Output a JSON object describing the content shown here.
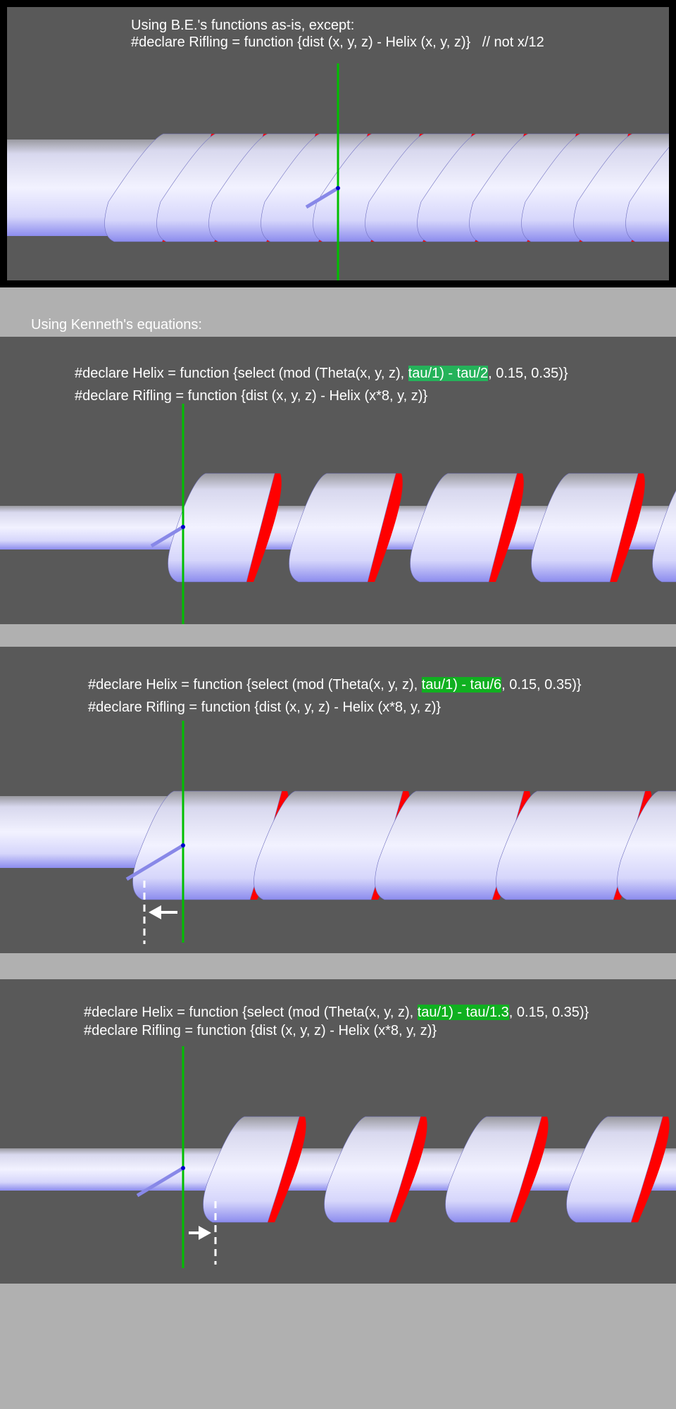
{
  "panel1": {
    "line1": "Using B.E.'s functions as-is, except:",
    "line2": "#declare Rifling = function {dist (x, y, z) - Helix (x, y, z)}",
    "comment": "// not x/12"
  },
  "section_label": "Using Kenneth's equations:",
  "panel2": {
    "helix_pre": "#declare Helix = function {select (mod (Theta(x, y, z), ",
    "helix_hl": "tau/1) - tau/2",
    "helix_post": ", 0.15, 0.35)}",
    "rifling": "#declare Rifling = function {dist (x, y, z) - Helix (x*8, y, z)}"
  },
  "panel3": {
    "helix_pre": "#declare Helix = function {select (mod (Theta(x, y, z), ",
    "helix_hl": "tau/1) - tau/6",
    "helix_post": ", 0.15, 0.35)}",
    "rifling": "#declare Rifling = function {dist (x, y, z) - Helix (x*8, y, z)}",
    "arrow_direction": "left"
  },
  "panel4": {
    "helix_pre": "#declare Helix = function {select (mod (Theta(x, y, z), ",
    "helix_hl": "tau/1) - tau/1.3",
    "helix_post": ", 0.15, 0.35)}",
    "rifling": "#declare Rifling = function {dist (x, y, z) - Helix (x*8, y, z)}",
    "arrow_direction": "right"
  },
  "colors": {
    "highlight_panel2": "#25b25a",
    "highlight": "#10b020",
    "axis_line": "#00c000",
    "cut_face": "#ff0000",
    "background": "#595959"
  }
}
